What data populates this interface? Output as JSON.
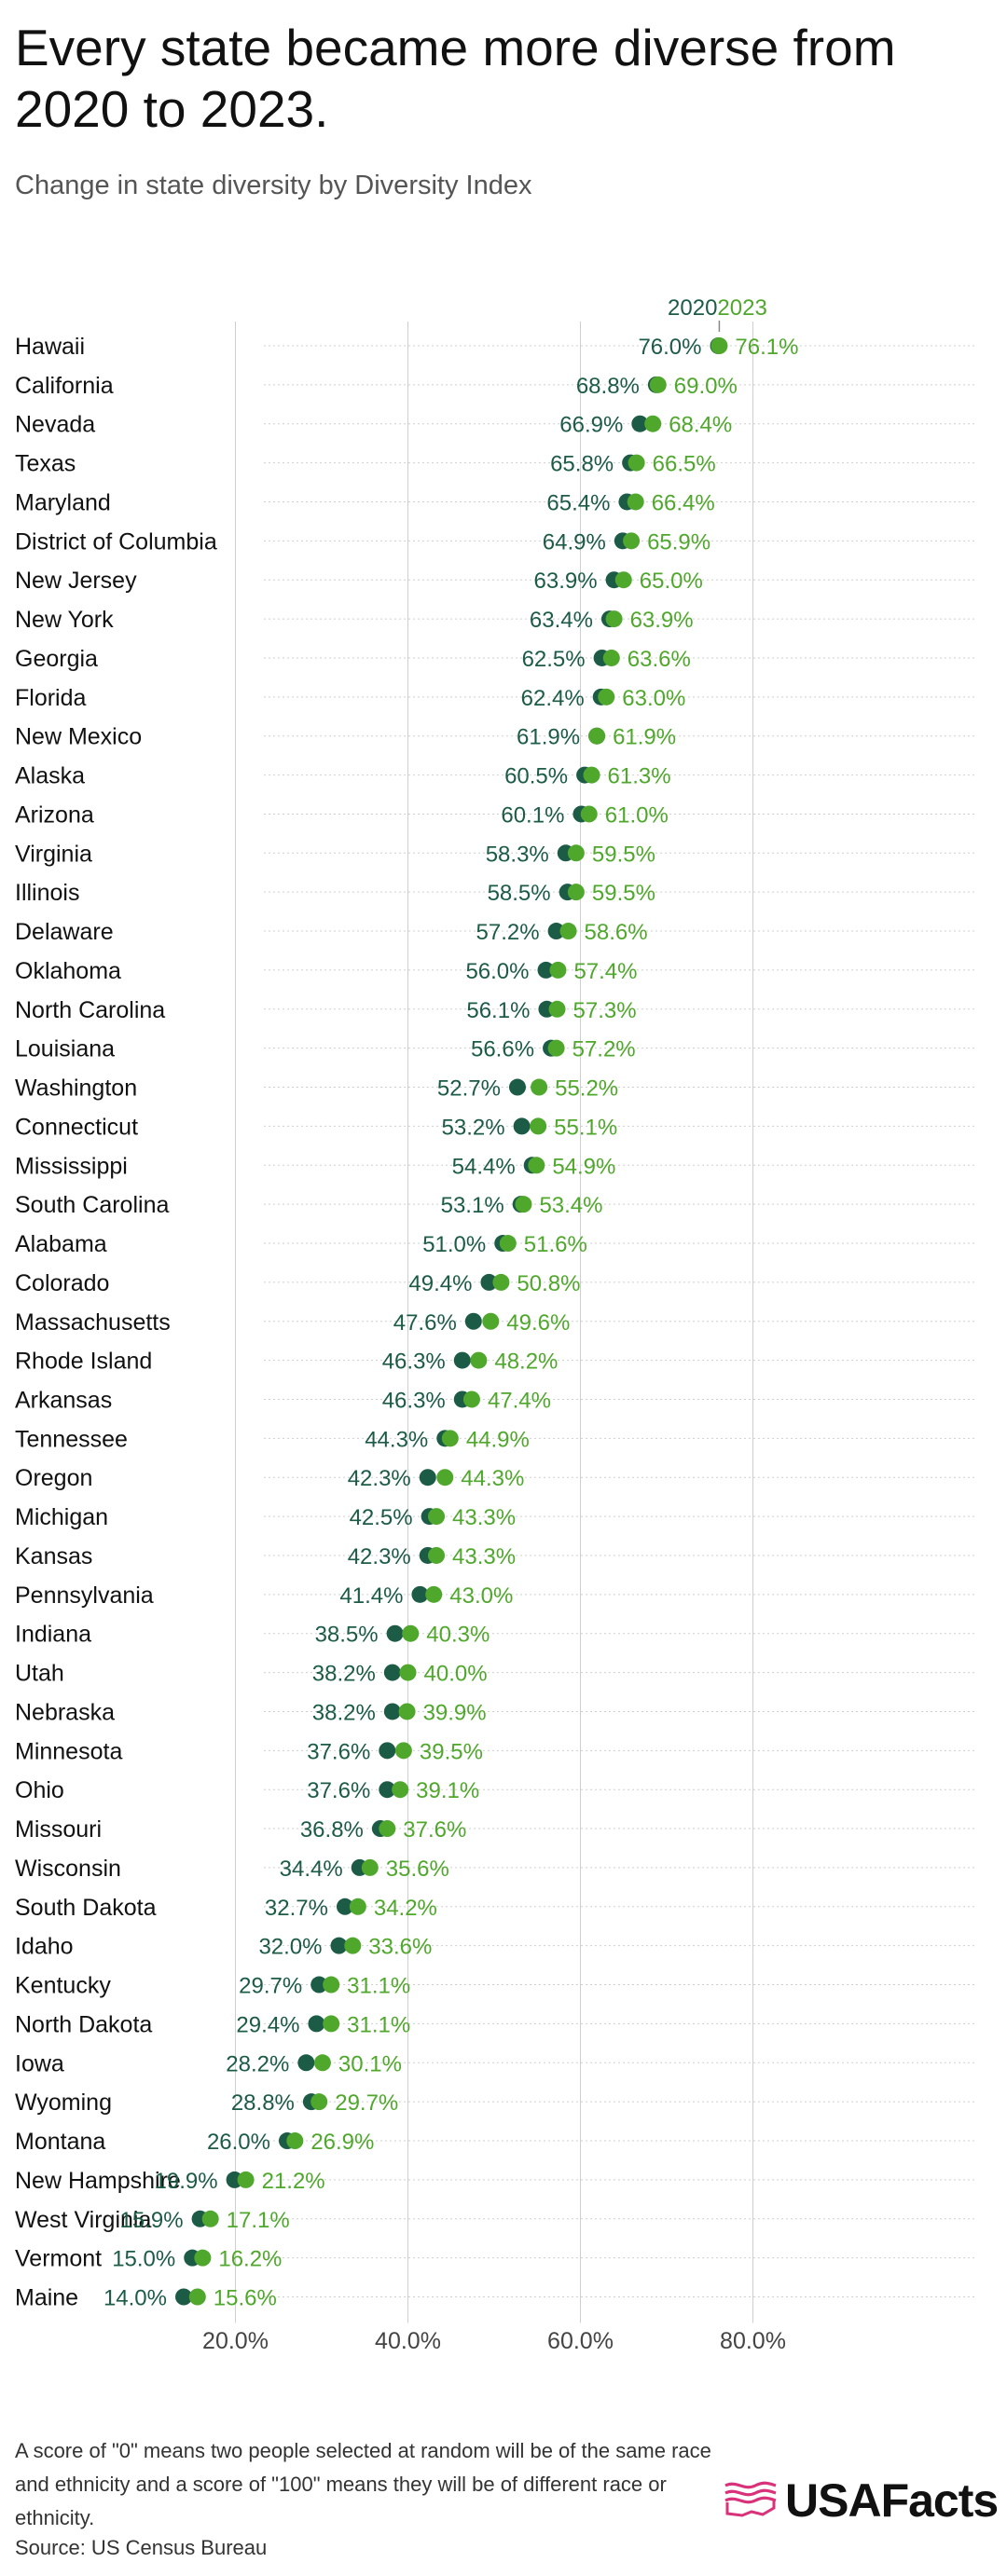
{
  "title": "Every state became more diverse from 2020 to 2023.",
  "subtitle": "Change in state diversity by Diversity Index",
  "colors": {
    "y2020": "#1c5c46",
    "y2023": "#4fa82c",
    "grid": "#cfcfcf",
    "logo_accent": "#d9327a"
  },
  "chart_data": {
    "type": "dot",
    "legend": [
      "2020",
      "2023"
    ],
    "x_ticks": [
      {
        "value": 20,
        "label": "20.0%"
      },
      {
        "value": 40,
        "label": "40.0%"
      },
      {
        "value": 60,
        "label": "60.0%"
      },
      {
        "value": 80,
        "label": "80.0%"
      }
    ],
    "xlim": [
      0,
      86
    ],
    "grid": true,
    "rows": [
      {
        "state": "Hawaii",
        "y2020": 76.0,
        "y2023": 76.1,
        "l2020": "76.0%",
        "l2023": "76.1%"
      },
      {
        "state": "California",
        "y2020": 68.8,
        "y2023": 69.0,
        "l2020": "68.8%",
        "l2023": "69.0%"
      },
      {
        "state": "Nevada",
        "y2020": 66.9,
        "y2023": 68.4,
        "l2020": "66.9%",
        "l2023": "68.4%"
      },
      {
        "state": "Texas",
        "y2020": 65.8,
        "y2023": 66.5,
        "l2020": "65.8%",
        "l2023": "66.5%"
      },
      {
        "state": "Maryland",
        "y2020": 65.4,
        "y2023": 66.4,
        "l2020": "65.4%",
        "l2023": "66.4%"
      },
      {
        "state": "District of Columbia",
        "y2020": 64.9,
        "y2023": 65.9,
        "l2020": "64.9%",
        "l2023": "65.9%"
      },
      {
        "state": "New Jersey",
        "y2020": 63.9,
        "y2023": 65.0,
        "l2020": "63.9%",
        "l2023": "65.0%"
      },
      {
        "state": "New York",
        "y2020": 63.4,
        "y2023": 63.9,
        "l2020": "63.4%",
        "l2023": "63.9%"
      },
      {
        "state": "Georgia",
        "y2020": 62.5,
        "y2023": 63.6,
        "l2020": "62.5%",
        "l2023": "63.6%"
      },
      {
        "state": "Florida",
        "y2020": 62.4,
        "y2023": 63.0,
        "l2020": "62.4%",
        "l2023": "63.0%"
      },
      {
        "state": "New Mexico",
        "y2020": 61.9,
        "y2023": 61.9,
        "l2020": "61.9%",
        "l2023": "61.9%"
      },
      {
        "state": "Alaska",
        "y2020": 60.5,
        "y2023": 61.3,
        "l2020": "60.5%",
        "l2023": "61.3%"
      },
      {
        "state": "Arizona",
        "y2020": 60.1,
        "y2023": 61.0,
        "l2020": "60.1%",
        "l2023": "61.0%"
      },
      {
        "state": "Virginia",
        "y2020": 58.3,
        "y2023": 59.5,
        "l2020": "58.3%",
        "l2023": "59.5%"
      },
      {
        "state": "Illinois",
        "y2020": 58.5,
        "y2023": 59.5,
        "l2020": "58.5%",
        "l2023": "59.5%"
      },
      {
        "state": "Delaware",
        "y2020": 57.2,
        "y2023": 58.6,
        "l2020": "57.2%",
        "l2023": "58.6%"
      },
      {
        "state": "Oklahoma",
        "y2020": 56.0,
        "y2023": 57.4,
        "l2020": "56.0%",
        "l2023": "57.4%"
      },
      {
        "state": "North Carolina",
        "y2020": 56.1,
        "y2023": 57.3,
        "l2020": "56.1%",
        "l2023": "57.3%"
      },
      {
        "state": "Louisiana",
        "y2020": 56.6,
        "y2023": 57.2,
        "l2020": "56.6%",
        "l2023": "57.2%"
      },
      {
        "state": "Washington",
        "y2020": 52.7,
        "y2023": 55.2,
        "l2020": "52.7%",
        "l2023": "55.2%"
      },
      {
        "state": "Connecticut",
        "y2020": 53.2,
        "y2023": 55.1,
        "l2020": "53.2%",
        "l2023": "55.1%"
      },
      {
        "state": "Mississippi",
        "y2020": 54.4,
        "y2023": 54.9,
        "l2020": "54.4%",
        "l2023": "54.9%"
      },
      {
        "state": "South Carolina",
        "y2020": 53.1,
        "y2023": 53.4,
        "l2020": "53.1%",
        "l2023": "53.4%"
      },
      {
        "state": "Alabama",
        "y2020": 51.0,
        "y2023": 51.6,
        "l2020": "51.0%",
        "l2023": "51.6%"
      },
      {
        "state": "Colorado",
        "y2020": 49.4,
        "y2023": 50.8,
        "l2020": "49.4%",
        "l2023": "50.8%"
      },
      {
        "state": "Massachusetts",
        "y2020": 47.6,
        "y2023": 49.6,
        "l2020": "47.6%",
        "l2023": "49.6%"
      },
      {
        "state": "Rhode Island",
        "y2020": 46.3,
        "y2023": 48.2,
        "l2020": "46.3%",
        "l2023": "48.2%"
      },
      {
        "state": "Arkansas",
        "y2020": 46.3,
        "y2023": 47.4,
        "l2020": "46.3%",
        "l2023": "47.4%"
      },
      {
        "state": "Tennessee",
        "y2020": 44.3,
        "y2023": 44.9,
        "l2020": "44.3%",
        "l2023": "44.9%"
      },
      {
        "state": "Oregon",
        "y2020": 42.3,
        "y2023": 44.3,
        "l2020": "42.3%",
        "l2023": "44.3%"
      },
      {
        "state": "Michigan",
        "y2020": 42.5,
        "y2023": 43.3,
        "l2020": "42.5%",
        "l2023": "43.3%"
      },
      {
        "state": "Kansas",
        "y2020": 42.3,
        "y2023": 43.3,
        "l2020": "42.3%",
        "l2023": "43.3%"
      },
      {
        "state": "Pennsylvania",
        "y2020": 41.4,
        "y2023": 43.0,
        "l2020": "41.4%",
        "l2023": "43.0%"
      },
      {
        "state": "Indiana",
        "y2020": 38.5,
        "y2023": 40.3,
        "l2020": "38.5%",
        "l2023": "40.3%"
      },
      {
        "state": "Utah",
        "y2020": 38.2,
        "y2023": 40.0,
        "l2020": "38.2%",
        "l2023": "40.0%"
      },
      {
        "state": "Nebraska",
        "y2020": 38.2,
        "y2023": 39.9,
        "l2020": "38.2%",
        "l2023": "39.9%"
      },
      {
        "state": "Minnesota",
        "y2020": 37.6,
        "y2023": 39.5,
        "l2020": "37.6%",
        "l2023": "39.5%"
      },
      {
        "state": "Ohio",
        "y2020": 37.6,
        "y2023": 39.1,
        "l2020": "37.6%",
        "l2023": "39.1%"
      },
      {
        "state": "Missouri",
        "y2020": 36.8,
        "y2023": 37.6,
        "l2020": "36.8%",
        "l2023": "37.6%"
      },
      {
        "state": "Wisconsin",
        "y2020": 34.4,
        "y2023": 35.6,
        "l2020": "34.4%",
        "l2023": "35.6%"
      },
      {
        "state": "South Dakota",
        "y2020": 32.7,
        "y2023": 34.2,
        "l2020": "32.7%",
        "l2023": "34.2%"
      },
      {
        "state": "Idaho",
        "y2020": 32.0,
        "y2023": 33.6,
        "l2020": "32.0%",
        "l2023": "33.6%"
      },
      {
        "state": "Kentucky",
        "y2020": 29.7,
        "y2023": 31.1,
        "l2020": "29.7%",
        "l2023": "31.1%"
      },
      {
        "state": "North Dakota",
        "y2020": 29.4,
        "y2023": 31.1,
        "l2020": "29.4%",
        "l2023": "31.1%"
      },
      {
        "state": "Iowa",
        "y2020": 28.2,
        "y2023": 30.1,
        "l2020": "28.2%",
        "l2023": "30.1%"
      },
      {
        "state": "Wyoming",
        "y2020": 28.8,
        "y2023": 29.7,
        "l2020": "28.8%",
        "l2023": "29.7%"
      },
      {
        "state": "Montana",
        "y2020": 26.0,
        "y2023": 26.9,
        "l2020": "26.0%",
        "l2023": "26.9%"
      },
      {
        "state": "New Hampshire",
        "y2020": 19.9,
        "y2023": 21.2,
        "l2020": "19.9%",
        "l2023": "21.2%"
      },
      {
        "state": "West Virginia",
        "y2020": 15.9,
        "y2023": 17.1,
        "l2020": "15.9%",
        "l2023": "17.1%"
      },
      {
        "state": "Vermont",
        "y2020": 15.0,
        "y2023": 16.2,
        "l2020": "15.0%",
        "l2023": "16.2%"
      },
      {
        "state": "Maine",
        "y2020": 14.0,
        "y2023": 15.6,
        "l2020": "14.0%",
        "l2023": "15.6%"
      }
    ]
  },
  "footnote": "A score of \"0\" means two people selected at random will be of the same race and ethnicity and a score of \"100\" means they will be of different race or ethnicity.",
  "source": "Source: US Census Bureau",
  "logo": {
    "text": "USAFacts",
    "icon": "usafacts-flag-icon"
  }
}
